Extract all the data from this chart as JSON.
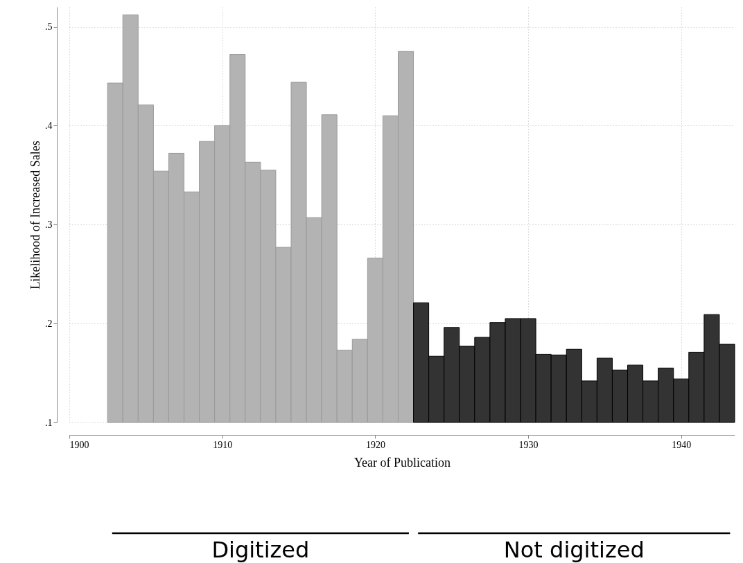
{
  "chart_data": {
    "type": "bar",
    "xlabel": "Year of Publication",
    "ylabel": "Likelihood of Increased Sales",
    "xlim": [
      1900,
      1943.5
    ],
    "xticks": [
      1900,
      1910,
      1920,
      1930,
      1940
    ],
    "ylim": [
      0.1,
      0.52
    ],
    "yticks": [
      {
        "value": 0.1,
        "label": ".1"
      },
      {
        "value": 0.2,
        "label": ".2"
      },
      {
        "value": 0.3,
        "label": ".3"
      },
      {
        "value": 0.4,
        "label": ".4"
      },
      {
        "value": 0.5,
        "label": ".5"
      }
    ],
    "grid": true,
    "annotations": [
      "Digitized",
      "Not digitized"
    ],
    "series": [
      {
        "color": "#b3b3b3",
        "x": [
          1903,
          1904,
          1905,
          1906,
          1907,
          1908,
          1909,
          1910,
          1911,
          1912,
          1913,
          1914,
          1915,
          1916,
          1917,
          1918,
          1919,
          1920,
          1921,
          1922
        ],
        "values": [
          0.443,
          0.512,
          0.421,
          0.354,
          0.372,
          0.333,
          0.384,
          0.4,
          0.472,
          0.363,
          0.355,
          0.277,
          0.444,
          0.307,
          0.411,
          0.173,
          0.184,
          0.266,
          0.41,
          0.475
        ]
      },
      {
        "color": "#333333",
        "x": [
          1923,
          1924,
          1925,
          1926,
          1927,
          1928,
          1929,
          1930,
          1931,
          1932,
          1933,
          1934,
          1935,
          1936,
          1937,
          1938,
          1939,
          1940,
          1941,
          1942,
          1943
        ],
        "values": [
          0.221,
          0.167,
          0.196,
          0.177,
          0.186,
          0.201,
          0.205,
          0.205,
          0.169,
          0.168,
          0.174,
          0.142,
          0.165,
          0.153,
          0.158,
          0.142,
          0.155,
          0.144,
          0.171,
          0.209,
          0.179
        ]
      }
    ]
  }
}
